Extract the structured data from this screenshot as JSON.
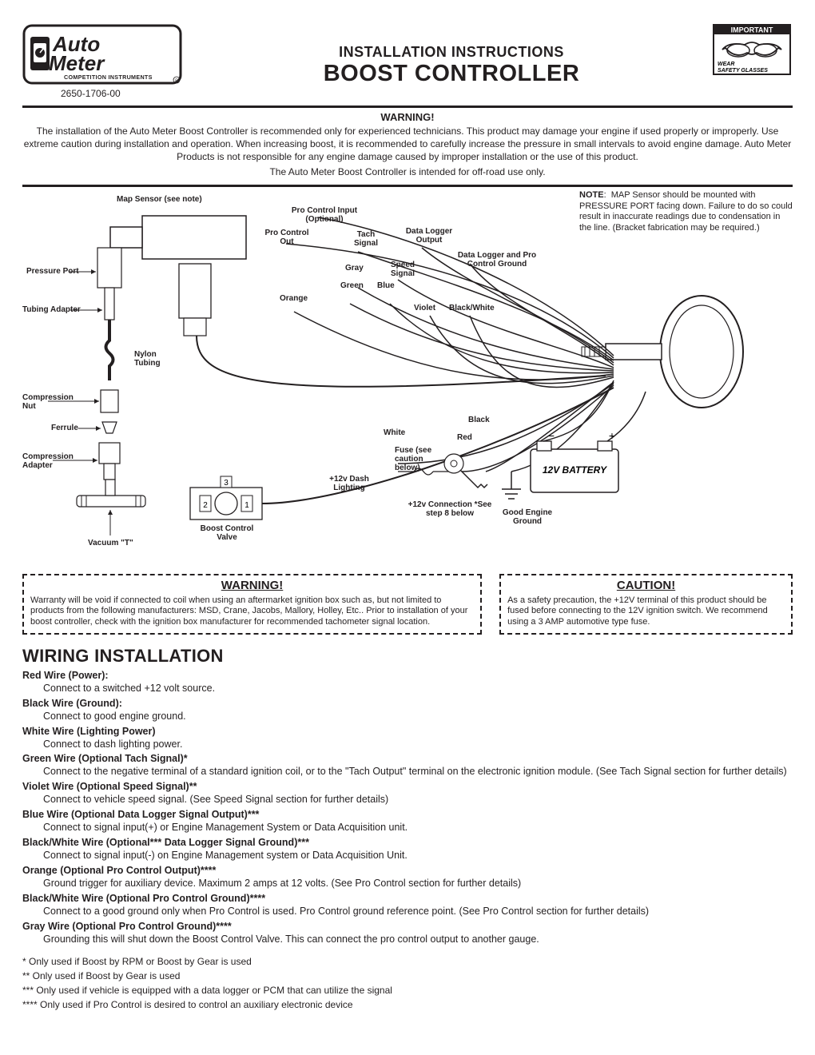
{
  "header": {
    "partnum": "2650-1706-00",
    "title1": "INSTALLATION INSTRUCTIONS",
    "title2": "BOOST CONTROLLER",
    "important": "IMPORTANT",
    "wear": "WEAR",
    "glasses": "SAFETY GLASSES"
  },
  "warning1": {
    "title": "WARNING!",
    "body": "The installation of the Auto Meter Boost Controller is recommended only for experienced technicians. This product may damage your engine if used properly or improperly. Use extreme caution during installation and operation. When increasing boost, it is recommended to carefully increase the pressure in small intervals to avoid engine damage. Auto Meter Products is not responsible for any engine damage caused by improper installation or the use of this product.",
    "body2": "The Auto Meter Boost Controller is intended for off-road use only."
  },
  "note": {
    "label": "NOTE",
    "text": "MAP Sensor should be mounted with PRESSURE PORT facing down. Failure to do so could result in inaccurate readings due to condensation in the line. (Bracket fabrication may be required.)"
  },
  "diagram_labels": {
    "map_sensor": "Map Sensor (see note)",
    "pressure_port": "Pressure Port",
    "tubing_adapter": "Tubing Adapter",
    "nylon_tubing": "Nylon Tubing",
    "compression_nut": "Compression Nut",
    "ferrule": "Ferrule",
    "compression_adapter": "Compression Adapter",
    "vacuum_t": "Vacuum \"T\"",
    "boost_valve": "Boost Control Valve",
    "pro_control_input": "Pro Control Input (Optional)",
    "pro_control_out": "Pro Control Out",
    "tach_signal": "Tach Signal",
    "data_logger_out": "Data Logger Output",
    "data_logger_ground": "Data Logger and Pro Control Ground",
    "speed_signal": "Speed Signal",
    "gray": "Gray",
    "green": "Green",
    "blue": "Blue",
    "orange": "Orange",
    "violet": "Violet",
    "black_white": "Black/White",
    "black": "Black",
    "white": "White",
    "red": "Red",
    "fuse": "Fuse (see caution below)",
    "dash_lighting": "+12v Dash Lighting",
    "twelve_v_conn": "+12v Connection *See step 8 below",
    "good_ground": "Good Engine Ground",
    "battery": "12V BATTERY"
  },
  "warning2": {
    "title": "WARNING!",
    "body": "Warranty will be void if connected to coil when using an aftermarket ignition box such as, but not limited to products from the following manufacturers: MSD, Crane, Jacobs, Mallory, Holley, Etc.. Prior to installation of your boost controller, check with the ignition box manufacturer for recommended tachometer signal location."
  },
  "caution": {
    "title": "CAUTION!",
    "body": "As a safety precaution, the +12V terminal of this product should be fused before connecting to the 12V ignition switch. We recommend using a 3 AMP automotive type fuse."
  },
  "wiring": {
    "title": "WIRING INSTALLATION",
    "items": [
      {
        "name": "Red Wire (Power):",
        "desc": "Connect to a switched +12 volt source."
      },
      {
        "name": "Black Wire (Ground):",
        "desc": "Connect to good engine ground."
      },
      {
        "name": "White Wire (Lighting Power)",
        "desc": "Connect to dash lighting power."
      },
      {
        "name": "Green Wire (Optional Tach Signal)*",
        "desc": "Connect to the negative terminal of a standard ignition coil, or to the \"Tach Output\" terminal on the electronic ignition module. (See Tach Signal section for further details)"
      },
      {
        "name": "Violet Wire (Optional Speed Signal)**",
        "desc": "Connect to vehicle speed signal. (See Speed Signal section for further details)"
      },
      {
        "name": "Blue Wire (Optional Data Logger Signal Output)***",
        "desc": "Connect to signal input(+) or Engine Management System or Data Acquisition unit."
      },
      {
        "name": "Black/White Wire (Optional*** Data Logger Signal Ground)***",
        "desc": "Connect to signal input(-) on Engine Management system or Data Acquisition Unit."
      },
      {
        "name": "Orange (Optional Pro Control Output)****",
        "desc": "Ground trigger for auxiliary device. Maximum 2 amps at 12 volts. (See Pro Control section for further details)"
      },
      {
        "name": "Black/White Wire (Optional Pro Control Ground)****",
        "desc": "Connect to a good ground only when Pro Control is used. Pro Control ground reference point. (See Pro Control section for further details)"
      },
      {
        "name": "Gray Wire (Optional Pro Control Ground)****",
        "desc": "Grounding this will shut down the Boost Control Valve. This can connect the pro control output to another gauge."
      }
    ]
  },
  "footnotes": [
    "* Only used if Boost by RPM or Boost by Gear is used",
    "** Only used if Boost by Gear is used",
    "*** Only used if vehicle is equipped with a data logger or PCM that can utilize the signal",
    "**** Only used if Pro Control is desired to control an auxiliary electronic device"
  ]
}
